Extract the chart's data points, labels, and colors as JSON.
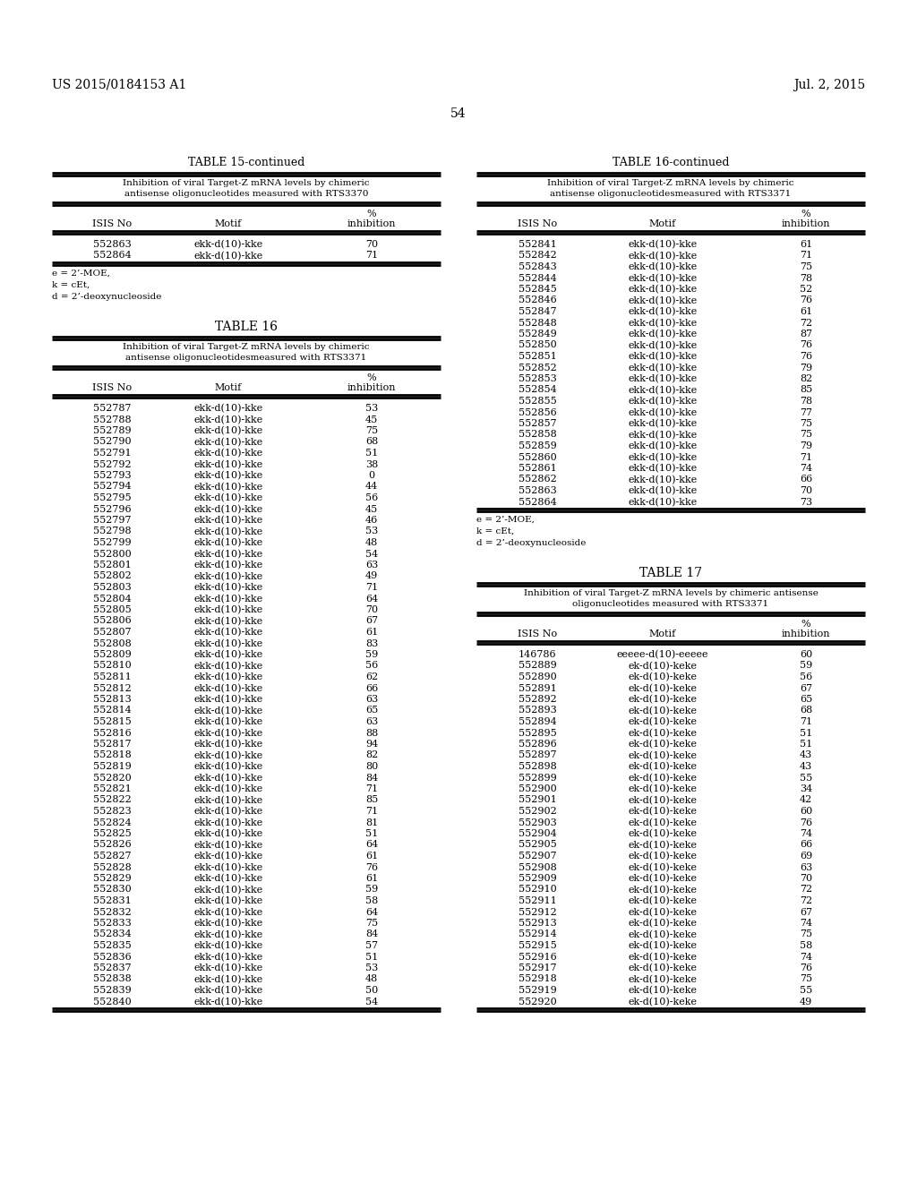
{
  "header_left": "US 2015/0184153 A1",
  "header_right": "Jul. 2, 2015",
  "page_number": "54",
  "table15_continued_title": "TABLE 15-continued",
  "table15_subtitle": "Inhibition of viral Target-Z mRNA levels by chimeric\nantisense oligonucleotides measured with RTS3370",
  "table15_data": [
    [
      "552863",
      "ekk-d(10)-kke",
      "70"
    ],
    [
      "552864",
      "ekk-d(10)-kke",
      "71"
    ]
  ],
  "table15_footnote": "e = 2’-MOE,\nk = cEt,\nd = 2’-deoxynucleoside",
  "table16_title": "TABLE 16",
  "table16_subtitle": "Inhibition of viral Target-Z mRNA levels by chimeric\nantisense oligonucleotidesmeasured with RTS3371",
  "table16_data": [
    [
      "552787",
      "ekk-d(10)-kke",
      "53"
    ],
    [
      "552788",
      "ekk-d(10)-kke",
      "45"
    ],
    [
      "552789",
      "ekk-d(10)-kke",
      "75"
    ],
    [
      "552790",
      "ekk-d(10)-kke",
      "68"
    ],
    [
      "552791",
      "ekk-d(10)-kke",
      "51"
    ],
    [
      "552792",
      "ekk-d(10)-kke",
      "38"
    ],
    [
      "552793",
      "ekk-d(10)-kke",
      "0"
    ],
    [
      "552794",
      "ekk-d(10)-kke",
      "44"
    ],
    [
      "552795",
      "ekk-d(10)-kke",
      "56"
    ],
    [
      "552796",
      "ekk-d(10)-kke",
      "45"
    ],
    [
      "552797",
      "ekk-d(10)-kke",
      "46"
    ],
    [
      "552798",
      "ekk-d(10)-kke",
      "53"
    ],
    [
      "552799",
      "ekk-d(10)-kke",
      "48"
    ],
    [
      "552800",
      "ekk-d(10)-kke",
      "54"
    ],
    [
      "552801",
      "ekk-d(10)-kke",
      "63"
    ],
    [
      "552802",
      "ekk-d(10)-kke",
      "49"
    ],
    [
      "552803",
      "ekk-d(10)-kke",
      "71"
    ],
    [
      "552804",
      "ekk-d(10)-kke",
      "64"
    ],
    [
      "552805",
      "ekk-d(10)-kke",
      "70"
    ],
    [
      "552806",
      "ekk-d(10)-kke",
      "67"
    ],
    [
      "552807",
      "ekk-d(10)-kke",
      "61"
    ],
    [
      "552808",
      "ekk-d(10)-kke",
      "83"
    ],
    [
      "552809",
      "ekk-d(10)-kke",
      "59"
    ],
    [
      "552810",
      "ekk-d(10)-kke",
      "56"
    ],
    [
      "552811",
      "ekk-d(10)-kke",
      "62"
    ],
    [
      "552812",
      "ekk-d(10)-kke",
      "66"
    ],
    [
      "552813",
      "ekk-d(10)-kke",
      "63"
    ],
    [
      "552814",
      "ekk-d(10)-kke",
      "65"
    ],
    [
      "552815",
      "ekk-d(10)-kke",
      "63"
    ],
    [
      "552816",
      "ekk-d(10)-kke",
      "88"
    ],
    [
      "552817",
      "ekk-d(10)-kke",
      "94"
    ],
    [
      "552818",
      "ekk-d(10)-kke",
      "82"
    ],
    [
      "552819",
      "ekk-d(10)-kke",
      "80"
    ],
    [
      "552820",
      "ekk-d(10)-kke",
      "84"
    ],
    [
      "552821",
      "ekk-d(10)-kke",
      "71"
    ],
    [
      "552822",
      "ekk-d(10)-kke",
      "85"
    ],
    [
      "552823",
      "ekk-d(10)-kke",
      "71"
    ],
    [
      "552824",
      "ekk-d(10)-kke",
      "81"
    ],
    [
      "552825",
      "ekk-d(10)-kke",
      "51"
    ],
    [
      "552826",
      "ekk-d(10)-kke",
      "64"
    ],
    [
      "552827",
      "ekk-d(10)-kke",
      "61"
    ],
    [
      "552828",
      "ekk-d(10)-kke",
      "76"
    ],
    [
      "552829",
      "ekk-d(10)-kke",
      "61"
    ],
    [
      "552830",
      "ekk-d(10)-kke",
      "59"
    ],
    [
      "552831",
      "ekk-d(10)-kke",
      "58"
    ],
    [
      "552832",
      "ekk-d(10)-kke",
      "64"
    ],
    [
      "552833",
      "ekk-d(10)-kke",
      "75"
    ],
    [
      "552834",
      "ekk-d(10)-kke",
      "84"
    ],
    [
      "552835",
      "ekk-d(10)-kke",
      "57"
    ],
    [
      "552836",
      "ekk-d(10)-kke",
      "51"
    ],
    [
      "552837",
      "ekk-d(10)-kke",
      "53"
    ],
    [
      "552838",
      "ekk-d(10)-kke",
      "48"
    ],
    [
      "552839",
      "ekk-d(10)-kke",
      "50"
    ],
    [
      "552840",
      "ekk-d(10)-kke",
      "54"
    ]
  ],
  "table16_continued_title": "TABLE 16-continued",
  "table16_continued_subtitle": "Inhibition of viral Target-Z mRNA levels by chimeric\nantisense oligonucleotidesmeasured with RTS3371",
  "table16_continued_data": [
    [
      "552841",
      "ekk-d(10)-kke",
      "61"
    ],
    [
      "552842",
      "ekk-d(10)-kke",
      "71"
    ],
    [
      "552843",
      "ekk-d(10)-kke",
      "75"
    ],
    [
      "552844",
      "ekk-d(10)-kke",
      "78"
    ],
    [
      "552845",
      "ekk-d(10)-kke",
      "52"
    ],
    [
      "552846",
      "ekk-d(10)-kke",
      "76"
    ],
    [
      "552847",
      "ekk-d(10)-kke",
      "61"
    ],
    [
      "552848",
      "ekk-d(10)-kke",
      "72"
    ],
    [
      "552849",
      "ekk-d(10)-kke",
      "87"
    ],
    [
      "552850",
      "ekk-d(10)-kke",
      "76"
    ],
    [
      "552851",
      "ekk-d(10)-kke",
      "76"
    ],
    [
      "552852",
      "ekk-d(10)-kke",
      "79"
    ],
    [
      "552853",
      "ekk-d(10)-kke",
      "82"
    ],
    [
      "552854",
      "ekk-d(10)-kke",
      "85"
    ],
    [
      "552855",
      "ekk-d(10)-kke",
      "78"
    ],
    [
      "552856",
      "ekk-d(10)-kke",
      "77"
    ],
    [
      "552857",
      "ekk-d(10)-kke",
      "75"
    ],
    [
      "552858",
      "ekk-d(10)-kke",
      "75"
    ],
    [
      "552859",
      "ekk-d(10)-kke",
      "79"
    ],
    [
      "552860",
      "ekk-d(10)-kke",
      "71"
    ],
    [
      "552861",
      "ekk-d(10)-kke",
      "74"
    ],
    [
      "552862",
      "ekk-d(10)-kke",
      "66"
    ],
    [
      "552863",
      "ekk-d(10)-kke",
      "70"
    ],
    [
      "552864",
      "ekk-d(10)-kke",
      "73"
    ]
  ],
  "table16_continued_footnote": "e = 2’-MOE,\nk = cEt,\nd = 2’-deoxynucleoside",
  "table17_title": "TABLE 17",
  "table17_subtitle": "Inhibition of viral Target-Z mRNA levels by chimeric antisense\noligonucleotides measured with RTS3371",
  "table17_data": [
    [
      "146786",
      "eeeee-d(10)-eeeee",
      "60"
    ],
    [
      "552889",
      "ek-d(10)-keke",
      "59"
    ],
    [
      "552890",
      "ek-d(10)-keke",
      "56"
    ],
    [
      "552891",
      "ek-d(10)-keke",
      "67"
    ],
    [
      "552892",
      "ek-d(10)-keke",
      "65"
    ],
    [
      "552893",
      "ek-d(10)-keke",
      "68"
    ],
    [
      "552894",
      "ek-d(10)-keke",
      "71"
    ],
    [
      "552895",
      "ek-d(10)-keke",
      "51"
    ],
    [
      "552896",
      "ek-d(10)-keke",
      "51"
    ],
    [
      "552897",
      "ek-d(10)-keke",
      "43"
    ],
    [
      "552898",
      "ek-d(10)-keke",
      "43"
    ],
    [
      "552899",
      "ek-d(10)-keke",
      "55"
    ],
    [
      "552900",
      "ek-d(10)-keke",
      "34"
    ],
    [
      "552901",
      "ek-d(10)-keke",
      "42"
    ],
    [
      "552902",
      "ek-d(10)-keke",
      "60"
    ],
    [
      "552903",
      "ek-d(10)-keke",
      "76"
    ],
    [
      "552904",
      "ek-d(10)-keke",
      "74"
    ],
    [
      "552905",
      "ek-d(10)-keke",
      "66"
    ],
    [
      "552907",
      "ek-d(10)-keke",
      "69"
    ],
    [
      "552908",
      "ek-d(10)-keke",
      "63"
    ],
    [
      "552909",
      "ek-d(10)-keke",
      "70"
    ],
    [
      "552910",
      "ek-d(10)-keke",
      "72"
    ],
    [
      "552911",
      "ek-d(10)-keke",
      "72"
    ],
    [
      "552912",
      "ek-d(10)-keke",
      "67"
    ],
    [
      "552913",
      "ek-d(10)-keke",
      "74"
    ],
    [
      "552914",
      "ek-d(10)-keke",
      "75"
    ],
    [
      "552915",
      "ek-d(10)-keke",
      "58"
    ],
    [
      "552916",
      "ek-d(10)-keke",
      "74"
    ],
    [
      "552917",
      "ek-d(10)-keke",
      "76"
    ],
    [
      "552918",
      "ek-d(10)-keke",
      "75"
    ],
    [
      "552919",
      "ek-d(10)-keke",
      "55"
    ],
    [
      "552920",
      "ek-d(10)-keke",
      "49"
    ]
  ]
}
